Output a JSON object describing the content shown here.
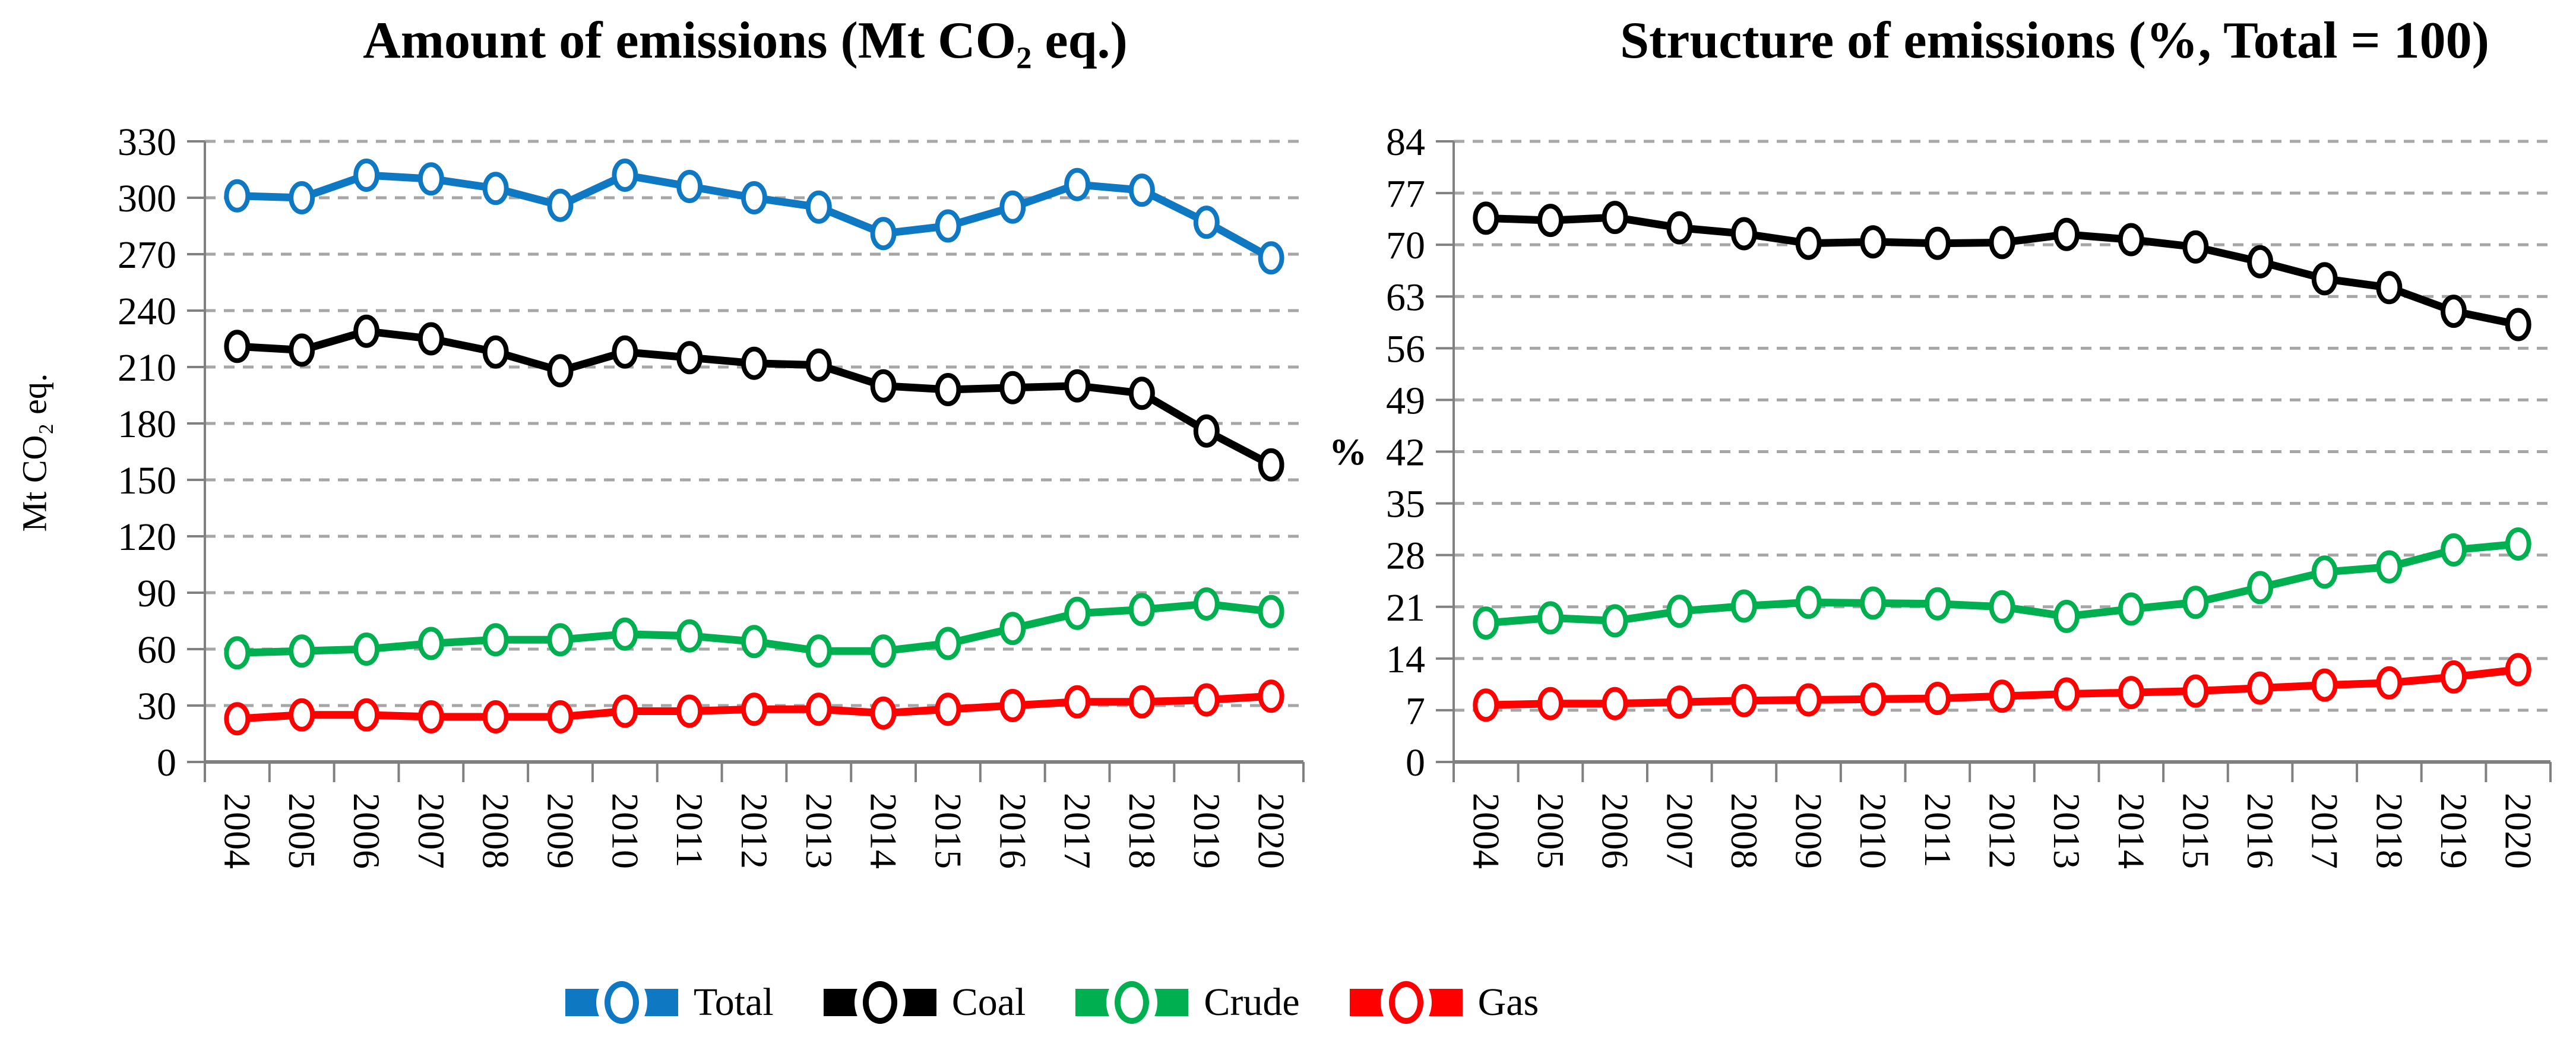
{
  "figure": {
    "background": "#ffffff",
    "text_color": "#000000",
    "gridline_color": "#a6a6a6",
    "axis_color": "#808080"
  },
  "chart_data": [
    {
      "type": "line",
      "title": "Amount of emissions (Mt CO₂ eq.)",
      "xlabel": "",
      "ylabel": "Mt CO₂ eq.",
      "ylim": [
        0,
        330
      ],
      "ytick_step": 30,
      "grid": true,
      "legend_position": "bottom-shared",
      "categories": [
        "2004",
        "2005",
        "2006",
        "2007",
        "2008",
        "2009",
        "2010",
        "2011",
        "2012",
        "2013",
        "2014",
        "2015",
        "2016",
        "2017",
        "2018",
        "2019",
        "2020"
      ],
      "series": [
        {
          "name": "Total",
          "color": "#0e78c2",
          "values": [
            301,
            300,
            312,
            310,
            305,
            296,
            312,
            306,
            300,
            295,
            281,
            285,
            295,
            307,
            304,
            287,
            268
          ]
        },
        {
          "name": "Coal",
          "color": "#000000",
          "values": [
            221,
            219,
            229,
            225,
            218,
            208,
            218,
            215,
            212,
            211,
            200,
            198,
            199,
            200,
            196,
            176,
            158
          ]
        },
        {
          "name": "Crude",
          "color": "#00b050",
          "values": [
            58,
            59,
            60,
            63,
            65,
            65,
            68,
            67,
            64,
            59,
            59,
            63,
            71,
            79,
            81,
            84,
            80
          ]
        },
        {
          "name": "Gas",
          "color": "#ff0000",
          "values": [
            23,
            25,
            25,
            24,
            24,
            24,
            27,
            27,
            28,
            28,
            26,
            28,
            30,
            32,
            32,
            33,
            35
          ]
        }
      ]
    },
    {
      "type": "line",
      "title": "Structure of emissions (%, Total = 100)",
      "xlabel": "",
      "ylabel": "%",
      "ylim": [
        0,
        84
      ],
      "ytick_step": 7,
      "grid": true,
      "legend_position": "bottom-shared",
      "categories": [
        "2004",
        "2005",
        "2006",
        "2007",
        "2008",
        "2009",
        "2010",
        "2011",
        "2012",
        "2013",
        "2014",
        "2015",
        "2016",
        "2017",
        "2018",
        "2019",
        "2020"
      ],
      "series": [
        {
          "name": "Coal",
          "color": "#000000",
          "values": [
            73.6,
            73.3,
            73.7,
            72.3,
            71.5,
            70.2,
            70.4,
            70.2,
            70.3,
            71.4,
            70.7,
            69.7,
            67.7,
            65.4,
            64.2,
            61.0,
            59.2
          ]
        },
        {
          "name": "Crude",
          "color": "#00b050",
          "values": [
            18.8,
            19.5,
            19.1,
            20.4,
            21.1,
            21.6,
            21.5,
            21.4,
            21.0,
            19.7,
            20.7,
            21.6,
            23.6,
            25.7,
            26.4,
            28.7,
            29.5
          ]
        },
        {
          "name": "Gas",
          "color": "#ff0000",
          "values": [
            7.7,
            7.9,
            7.9,
            8.1,
            8.3,
            8.4,
            8.5,
            8.6,
            8.9,
            9.2,
            9.4,
            9.6,
            10.0,
            10.4,
            10.7,
            11.5,
            12.5
          ]
        }
      ]
    }
  ],
  "legend": {
    "items": [
      {
        "label": "Total",
        "color": "#0e78c2"
      },
      {
        "label": "Coal",
        "color": "#000000"
      },
      {
        "label": "Crude",
        "color": "#00b050"
      },
      {
        "label": "Gas",
        "color": "#ff0000"
      }
    ]
  }
}
